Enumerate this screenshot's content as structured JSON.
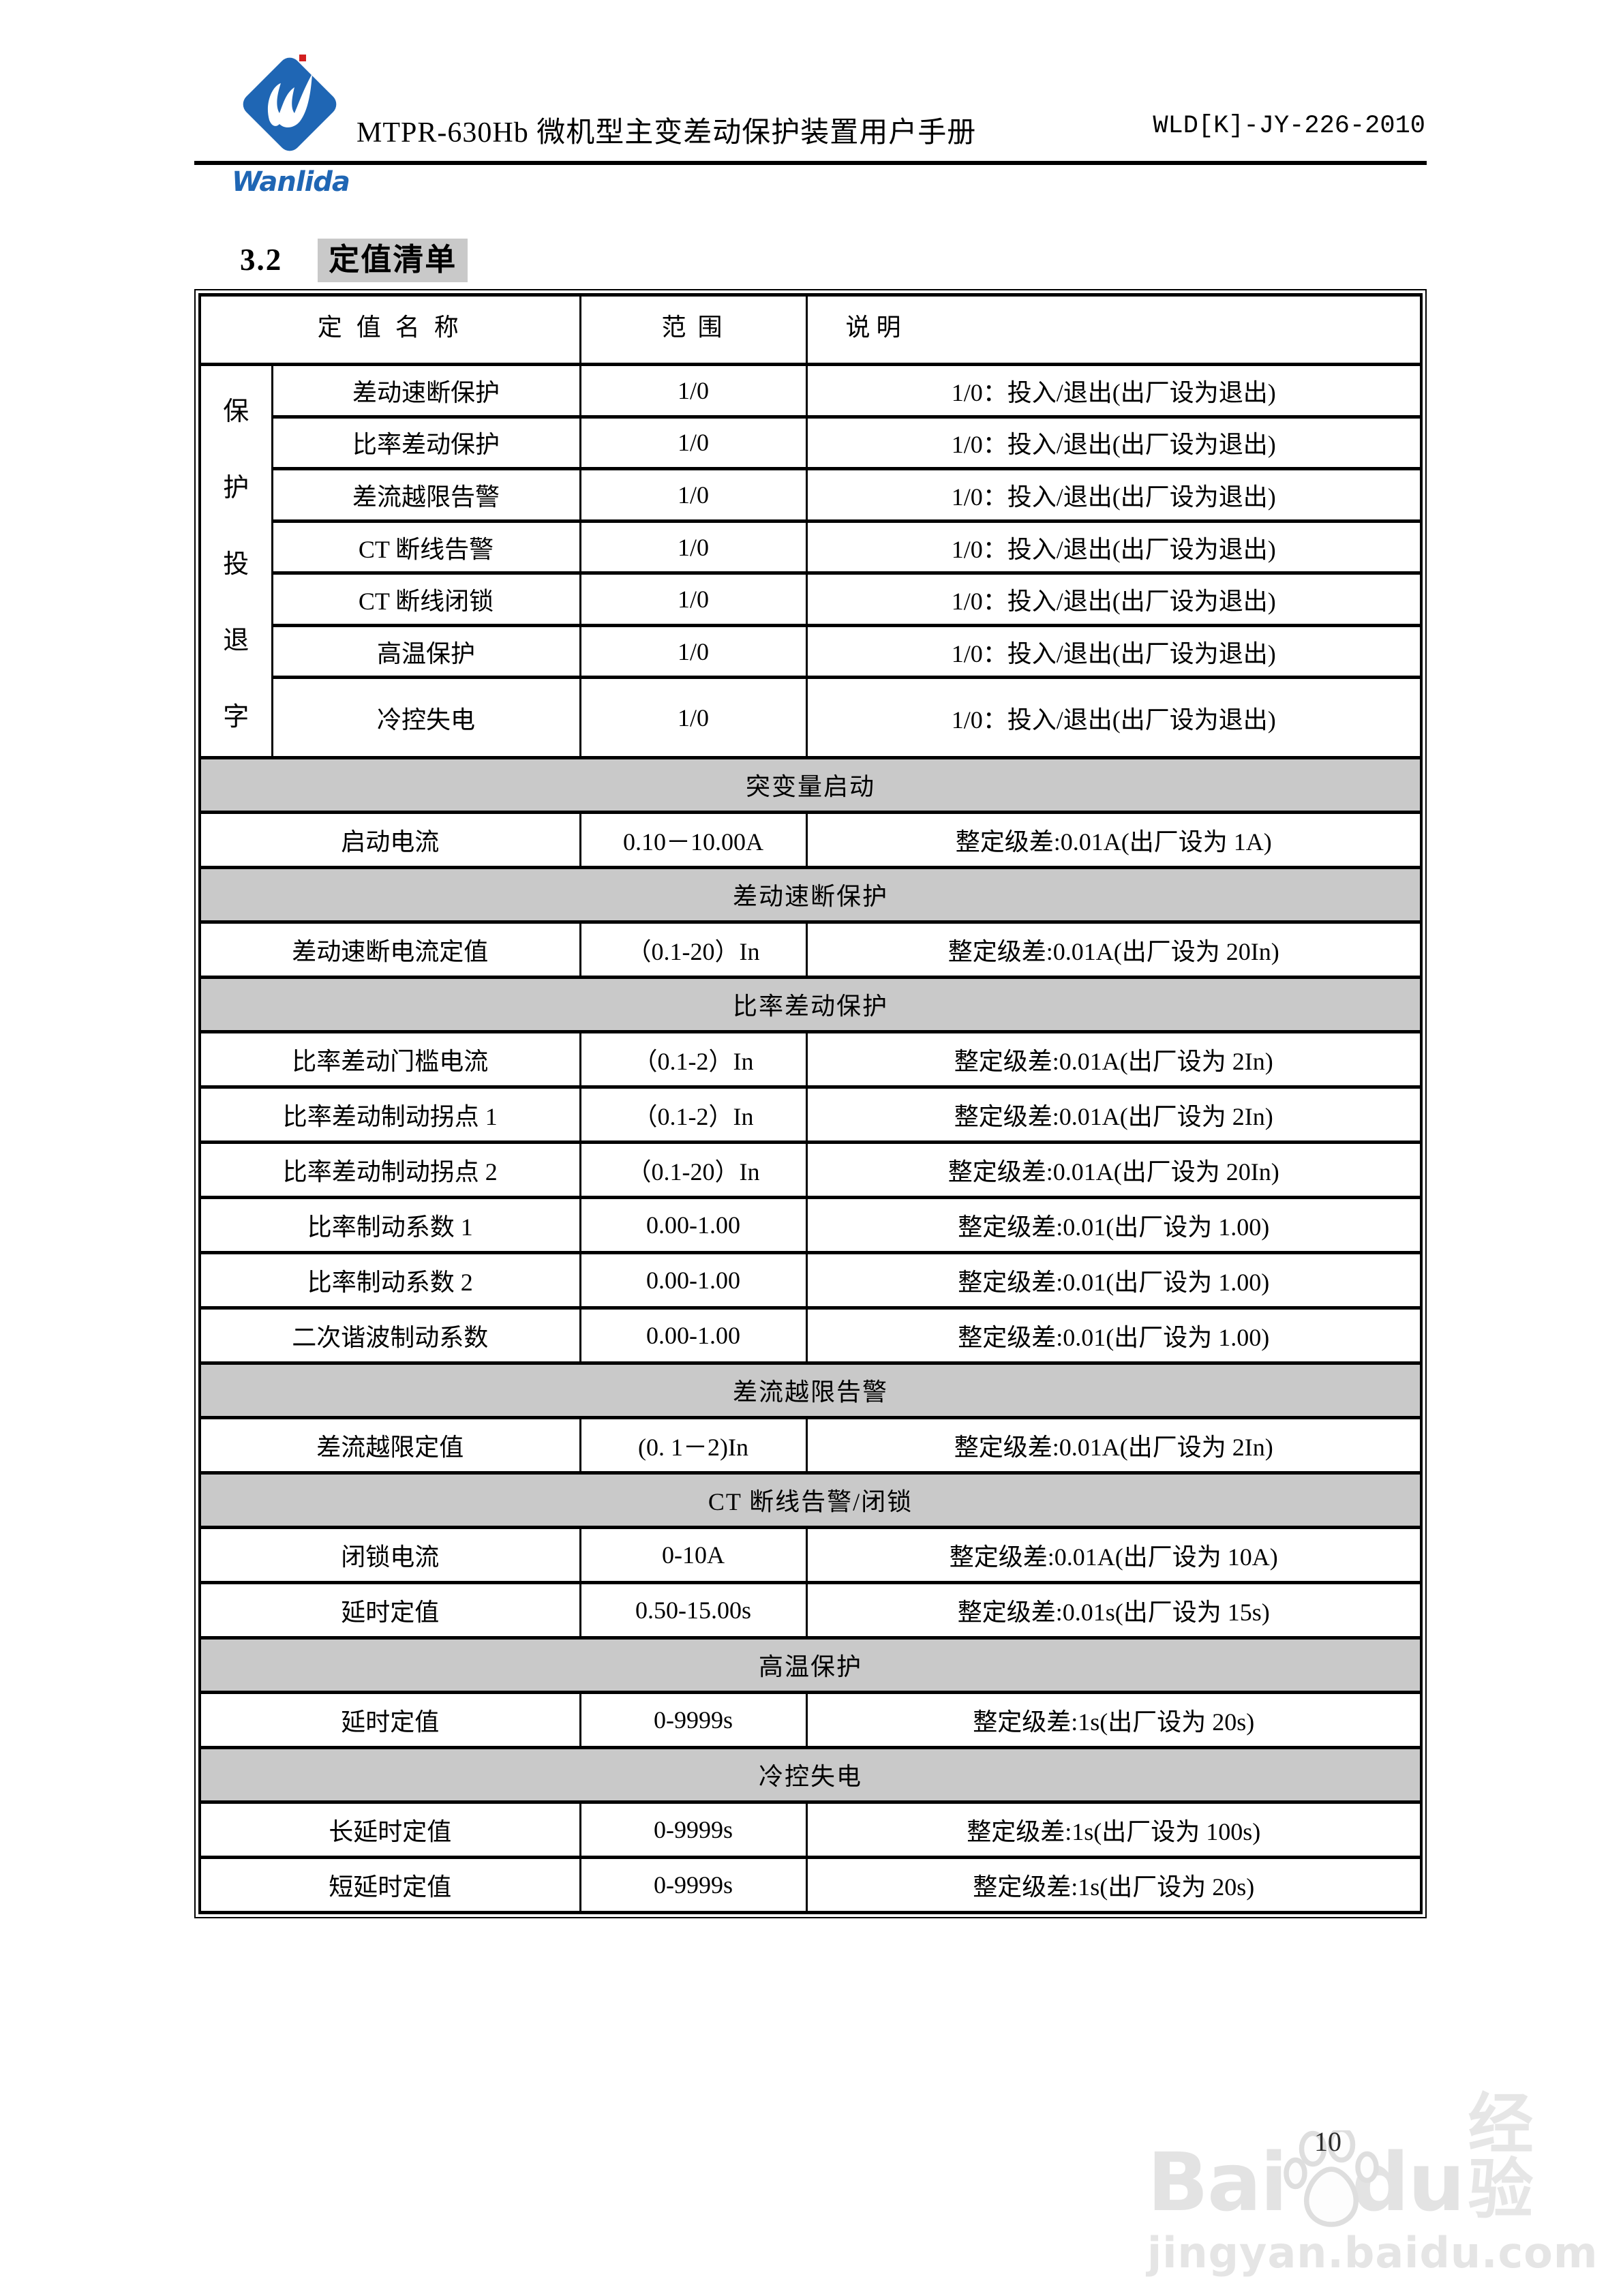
{
  "colors": {
    "brand_blue": "#1f66b4",
    "logo_red_accent": "#d21f1f",
    "heading_highlight": "#c9c9c9",
    "watermark_gray": "#e3e3e3",
    "text_black": "#000000"
  },
  "header": {
    "logo_text": "Wanlida",
    "title": "MTPR-630Hb 微机型主变差动保护装置用户手册",
    "doc_number": "WLD[K]-JY-226-2010"
  },
  "section": {
    "number": "3.2",
    "title": "定值清单"
  },
  "table": {
    "headers": {
      "name": "定 值 名 称",
      "range": "范  围",
      "desc": "说      明"
    },
    "group_label": "保护投退字",
    "group_rows": [
      {
        "name": "差动速断保护",
        "range": "1/0",
        "desc": "1/0：投入/退出(出厂设为退出)"
      },
      {
        "name": "比率差动保护",
        "range": "1/0",
        "desc": "1/0：投入/退出(出厂设为退出)"
      },
      {
        "name": "差流越限告警",
        "range": "1/0",
        "desc": "1/0：投入/退出(出厂设为退出)"
      },
      {
        "name": "CT 断线告警",
        "range": "1/0",
        "desc": "1/0：投入/退出(出厂设为退出)"
      },
      {
        "name": "CT 断线闭锁",
        "range": "1/0",
        "desc": "1/0：投入/退出(出厂设为退出)"
      },
      {
        "name": "高温保护",
        "range": "1/0",
        "desc": "1/0：投入/退出(出厂设为退出)"
      },
      {
        "name": "冷控失电",
        "range": "1/0",
        "desc": "1/0：投入/退出(出厂设为退出)"
      }
    ],
    "sections": [
      {
        "title": "突变量启动",
        "rows": [
          {
            "name": "启动电流",
            "range": "0.10－10.00A",
            "desc": "整定级差:0.01A(出厂设为 1A)"
          }
        ]
      },
      {
        "title": "差动速断保护",
        "rows": [
          {
            "name": "差动速断电流定值",
            "range": "（0.1-20）In",
            "desc": "整定级差:0.01A(出厂设为 20In)"
          }
        ]
      },
      {
        "title": "比率差动保护",
        "rows": [
          {
            "name": "比率差动门槛电流",
            "range": "（0.1-2）In",
            "desc": "整定级差:0.01A(出厂设为 2In)"
          },
          {
            "name": "比率差动制动拐点 1",
            "range": "（0.1-2）In",
            "desc": "整定级差:0.01A(出厂设为 2In)"
          },
          {
            "name": "比率差动制动拐点 2",
            "range": "（0.1-20）In",
            "desc": "整定级差:0.01A(出厂设为 20In)"
          },
          {
            "name": "比率制动系数 1",
            "range": "0.00-1.00",
            "desc": "整定级差:0.01(出厂设为 1.00)"
          },
          {
            "name": "比率制动系数 2",
            "range": "0.00-1.00",
            "desc": "整定级差:0.01(出厂设为 1.00)"
          },
          {
            "name": "二次谐波制动系数",
            "range": "0.00-1.00",
            "desc": "整定级差:0.01(出厂设为 1.00)"
          }
        ]
      },
      {
        "title": "差流越限告警",
        "rows": [
          {
            "name": "差流越限定值",
            "range": "(0. 1－2)In",
            "desc": "整定级差:0.01A(出厂设为 2In)"
          }
        ]
      },
      {
        "title": "CT 断线告警/闭锁",
        "rows": [
          {
            "name": "闭锁电流",
            "range": "0-10A",
            "desc": "整定级差:0.01A(出厂设为 10A)"
          },
          {
            "name": "延时定值",
            "range": "0.50-15.00s",
            "desc": "整定级差:0.01s(出厂设为 15s)"
          }
        ]
      },
      {
        "title": "高温保护",
        "rows": [
          {
            "name": "延时定值",
            "range": "0-9999s",
            "desc": "整定级差:1s(出厂设为 20s)"
          }
        ]
      },
      {
        "title": "冷控失电",
        "rows": [
          {
            "name": "长延时定值",
            "range": "0-9999s",
            "desc": "整定级差:1s(出厂设为 100s)"
          },
          {
            "name": "短延时定值",
            "range": "0-9999s",
            "desc": "整定级差:1s(出厂设为 20s)"
          }
        ]
      }
    ]
  },
  "footer": {
    "watermark": {
      "bai": "Bai",
      "du": "du",
      "suffix": "经验",
      "url": "jingyan.baidu.com"
    },
    "page_number": "10"
  }
}
